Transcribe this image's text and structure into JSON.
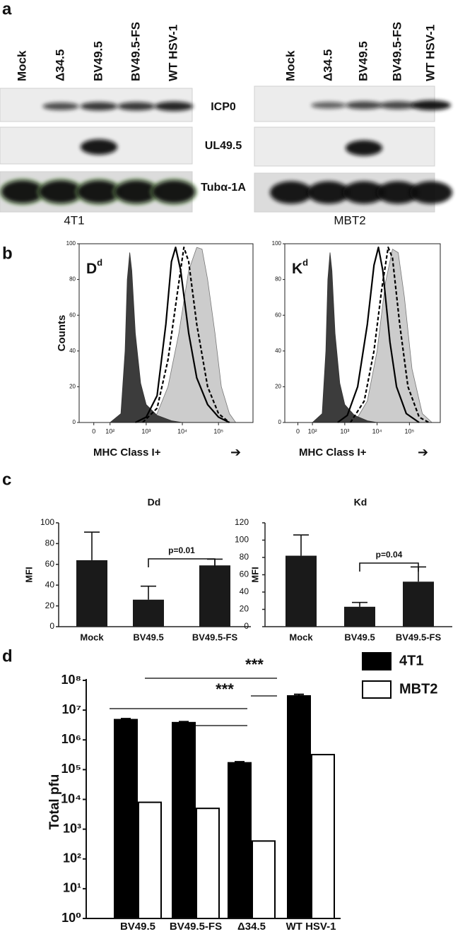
{
  "blots": {
    "panel_label": "a",
    "rows": [
      "ICP0",
      "UL49.5",
      "Tubα-1A"
    ],
    "cell_lines": [
      {
        "name": "4T1",
        "lanes": [
          "Mock",
          "Δ34.5",
          "BV49.5",
          "BV49.5-FS",
          "WT HSV-1"
        ]
      },
      {
        "name": "MBT2",
        "lanes": [
          "Mock",
          "Δ34.5",
          "BV49.5",
          "BV49.5-FS",
          "WT HSV-1"
        ]
      }
    ]
  },
  "chart_data": [
    {
      "type": "line",
      "panel_label": "b",
      "label": {
        "base": "D",
        "sup": "d"
      },
      "ylabel": "Counts",
      "xlabel": "MHC Class I+",
      "arrow": "➔",
      "xscale": "biexponential",
      "xlim": [
        -90,
        900000
      ],
      "xticks": [
        0,
        {
          "value": 100,
          "label": "10²"
        },
        {
          "value": 1000,
          "label": "10³"
        },
        {
          "value": 10000,
          "label": "10⁴"
        },
        {
          "value": 100000,
          "label": "10⁵"
        }
      ],
      "ylim": [
        0,
        100
      ],
      "yticks": [
        0,
        20,
        40,
        60,
        80,
        100
      ],
      "series": [
        {
          "color": "#777777",
          "fill": "#cccccc",
          "x": [
            1000,
            2000,
            4000,
            8000,
            15000,
            25000,
            35000,
            50000,
            80000,
            120000,
            200000,
            300000
          ],
          "values": [
            0,
            5,
            20,
            50,
            85,
            98,
            97,
            80,
            50,
            20,
            5,
            0
          ]
        },
        {
          "color": "#333333",
          "fill": "#3c3c3c",
          "x": [
            100,
            200,
            260,
            300,
            350,
            400,
            500,
            700,
            1000,
            2000,
            5000,
            10000
          ],
          "values": [
            0,
            5,
            40,
            80,
            95,
            85,
            50,
            22,
            10,
            4,
            1,
            0
          ]
        },
        {
          "color": "#000000",
          "x": [
            500,
            1000,
            2000,
            3500,
            5000,
            6500,
            9000,
            15000,
            25000,
            50000,
            100000,
            200000
          ],
          "values": [
            0,
            3,
            15,
            55,
            90,
            98,
            85,
            50,
            25,
            10,
            3,
            0
          ]
        },
        {
          "color": "#000000",
          "dash": true,
          "x": [
            800,
            2000,
            4000,
            7000,
            11000,
            15000,
            25000,
            50000,
            100000,
            200000
          ],
          "values": [
            0,
            8,
            35,
            70,
            98,
            90,
            55,
            20,
            5,
            0
          ]
        }
      ]
    },
    {
      "type": "line",
      "label": {
        "base": "K",
        "sup": "d"
      },
      "xlabel": "MHC Class I+",
      "arrow": "➔",
      "xscale": "biexponential",
      "xlim": [
        -90,
        900000
      ],
      "xticks": [
        0,
        {
          "value": 100,
          "label": "10²"
        },
        {
          "value": 1000,
          "label": "10³"
        },
        {
          "value": 10000,
          "label": "10⁴"
        },
        {
          "value": 100000,
          "label": "10⁵"
        }
      ],
      "ylim": [
        0,
        100
      ],
      "yticks": [
        0,
        20,
        40,
        60,
        80,
        100
      ],
      "series": [
        {
          "color": "#777777",
          "fill": "#cccccc",
          "x": [
            2000,
            5000,
            10000,
            18000,
            30000,
            45000,
            70000,
            120000,
            250000,
            500000
          ],
          "values": [
            0,
            12,
            40,
            78,
            97,
            95,
            70,
            30,
            5,
            0
          ]
        },
        {
          "color": "#333333",
          "fill": "#3c3c3c",
          "x": [
            100,
            200,
            260,
            300,
            350,
            400,
            500,
            700,
            1000,
            2000,
            5000,
            10000
          ],
          "values": [
            0,
            5,
            40,
            80,
            95,
            85,
            50,
            22,
            10,
            4,
            1,
            0
          ]
        },
        {
          "color": "#000000",
          "x": [
            600,
            1200,
            2500,
            5000,
            8000,
            11000,
            15000,
            25000,
            40000,
            80000,
            200000
          ],
          "values": [
            0,
            4,
            20,
            55,
            88,
            98,
            85,
            45,
            20,
            5,
            0
          ]
        },
        {
          "color": "#000000",
          "dash": true,
          "x": [
            1500,
            4000,
            8000,
            14000,
            22000,
            30000,
            50000,
            90000,
            200000,
            400000
          ],
          "values": [
            0,
            12,
            40,
            75,
            98,
            92,
            55,
            20,
            3,
            0
          ]
        }
      ]
    },
    {
      "type": "bar",
      "panel_label": "c",
      "title": "Dd",
      "ylabel": "MFI",
      "categories": [
        "Mock",
        "BV49.5",
        "BV49.5-FS"
      ],
      "values": [
        64,
        26,
        59
      ],
      "errors": [
        27,
        13,
        6
      ],
      "color": "#1a1a1a",
      "ylim": [
        0,
        100
      ],
      "yticks": [
        0,
        20,
        40,
        60,
        80,
        100
      ],
      "annotation": "p=0.01"
    },
    {
      "type": "bar",
      "title": "Kd",
      "ylabel": "MFI",
      "categories": [
        "Mock",
        "BV49.5",
        "BV49.5-FS"
      ],
      "values": [
        82,
        23,
        52
      ],
      "errors": [
        24,
        5,
        17
      ],
      "color": "#1a1a1a",
      "ylim": [
        0,
        120
      ],
      "yticks": [
        0,
        20,
        40,
        60,
        80,
        100,
        120
      ],
      "annotation": "p=0.04"
    },
    {
      "type": "grouped_bar",
      "panel_label": "d",
      "ylabel": "Total pfu",
      "ylog": true,
      "ylim": [
        1,
        100000000
      ],
      "yticks": [
        {
          "value": 1,
          "label": "10⁰"
        },
        {
          "value": 10,
          "label": "10¹"
        },
        {
          "value": 100,
          "label": "10²"
        },
        {
          "value": 1000,
          "label": "10³"
        },
        {
          "value": 10000,
          "label": "10⁴"
        },
        {
          "value": 100000,
          "label": "10⁵"
        },
        {
          "value": 1000000,
          "label": "10⁶"
        },
        {
          "value": 10000000,
          "label": "10⁷"
        },
        {
          "value": 100000000,
          "label": "10⁸"
        }
      ],
      "categories": [
        "BV49.5",
        "BV49.5-FS",
        "Δ34.5",
        "WT HSV-1"
      ],
      "series": [
        {
          "name": "4T1",
          "color": "#000000",
          "values": [
            4800000,
            3800000,
            170000,
            30000000
          ],
          "errors": [
            400000,
            300000,
            15000,
            4000000
          ]
        },
        {
          "name": "MBT2",
          "color": "#ffffff",
          "values": [
            8000,
            5000,
            400,
            320000
          ]
        }
      ],
      "legend": "top-right",
      "annotations": [
        "***",
        "***"
      ]
    }
  ]
}
